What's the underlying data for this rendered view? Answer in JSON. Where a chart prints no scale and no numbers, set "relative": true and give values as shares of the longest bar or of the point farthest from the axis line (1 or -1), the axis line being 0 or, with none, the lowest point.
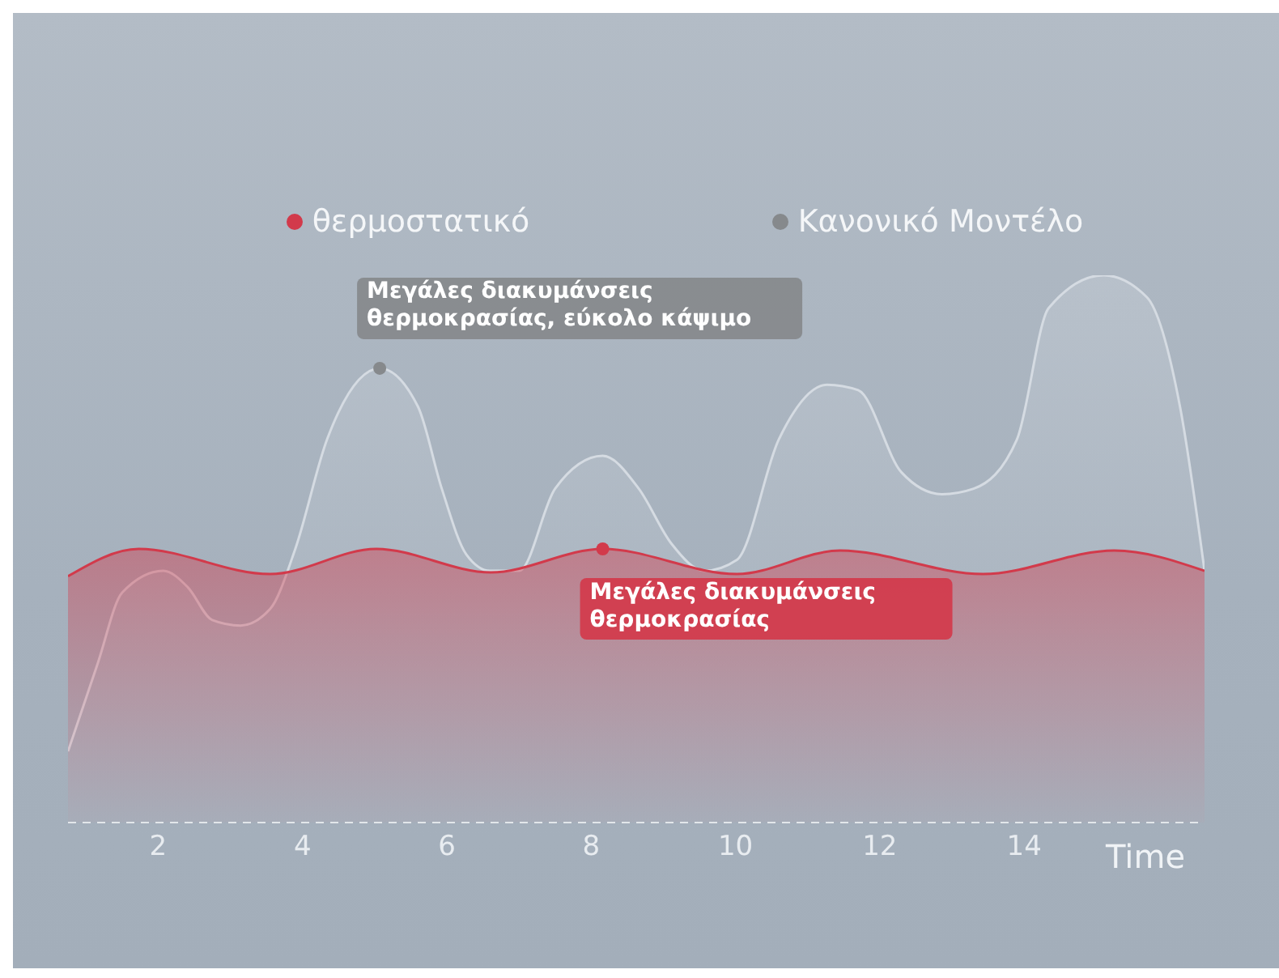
{
  "chart_data": {
    "type": "area",
    "relative": true,
    "xlabel": "Time",
    "xlim": [
      0.75,
      16.5
    ],
    "xticks": [
      2,
      4,
      6,
      8,
      10,
      12,
      14
    ],
    "legend": "top",
    "marker": "none",
    "line_style": "solid",
    "grid": false,
    "series": [
      {
        "name": "θερμοστατικό",
        "color": "#d23a4b",
        "x": [
          0.75,
          1.73,
          3.55,
          5.02,
          6.61,
          8.16,
          10.02,
          11.45,
          13.43,
          15.25,
          16.5
        ],
        "values": [
          0.45,
          0.5,
          0.454,
          0.5,
          0.457,
          0.5,
          0.454,
          0.497,
          0.454,
          0.497,
          0.46
        ]
      },
      {
        "name": "Κανονικό Μοντέλο",
        "color": "#d5dbe2",
        "x": [
          0.75,
          1.16,
          1.5,
          2.07,
          2.41,
          2.75,
          3.14,
          3.55,
          3.9,
          4.34,
          5.07,
          5.6,
          5.93,
          6.27,
          6.6,
          7.0,
          7.5,
          8.16,
          8.66,
          9.11,
          9.57,
          10.02,
          10.6,
          11.27,
          11.7,
          12.3,
          12.86,
          13.3,
          13.9,
          14.34,
          15.1,
          15.7,
          16.16,
          16.5
        ],
        "values": [
          0.13,
          0.29,
          0.42,
          0.46,
          0.43,
          0.37,
          0.36,
          0.39,
          0.5,
          0.7,
          0.83,
          0.76,
          0.61,
          0.49,
          0.46,
          0.46,
          0.61,
          0.67,
          0.61,
          0.51,
          0.46,
          0.48,
          0.7,
          0.8,
          0.79,
          0.64,
          0.6,
          0.61,
          0.7,
          0.94,
          1,
          0.96,
          0.76,
          0.46
        ]
      }
    ],
    "annotations": [
      {
        "text": "Μεγάλες διακυμάνσεις θερμοκρασίας",
        "x": 8.16,
        "y": 0.5
      },
      {
        "text": "Μεγάλες διακυμάνσεις θερμοκρασίας, εύκολο κάψιμο",
        "x": 5.07,
        "y": 0.83
      }
    ]
  }
}
